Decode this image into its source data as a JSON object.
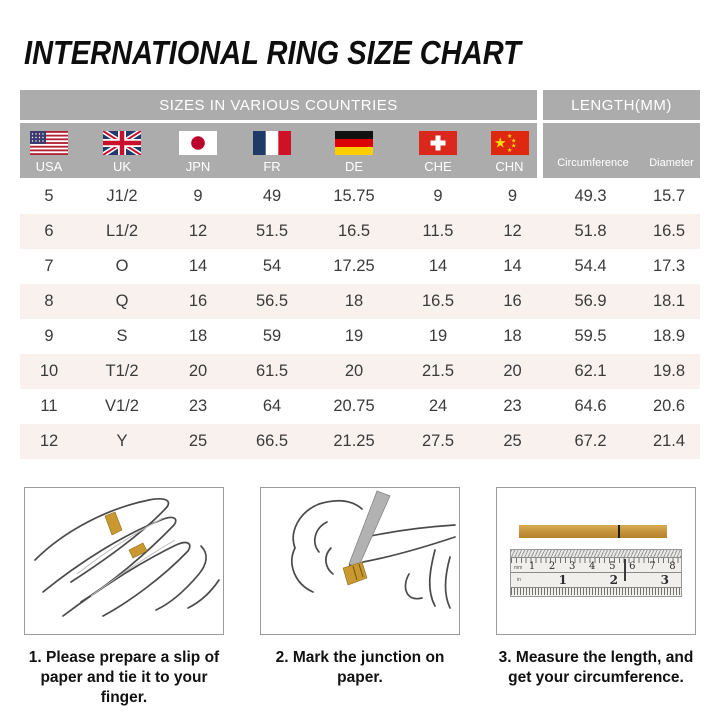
{
  "title": "INTERNATIONAL RING SIZE CHART",
  "chart_data": {
    "type": "table",
    "title": "INTERNATIONAL RING SIZE CHART",
    "group_headers": {
      "sizes": "SIZES IN VARIOUS COUNTRIES",
      "length": "LENGTH(MM)"
    },
    "columns": [
      "USA",
      "UK",
      "JPN",
      "FR",
      "DE",
      "CHE",
      "CHN",
      "Circumference",
      "Diameter"
    ],
    "flag_icons": [
      "usa-flag",
      "uk-flag",
      "japan-flag",
      "france-flag",
      "germany-flag",
      "switzerland-flag",
      "china-flag"
    ],
    "rows": [
      [
        "5",
        "J1/2",
        "9",
        "49",
        "15.75",
        "9",
        "9",
        "49.3",
        "15.7"
      ],
      [
        "6",
        "L1/2",
        "12",
        "51.5",
        "16.5",
        "11.5",
        "12",
        "51.8",
        "16.5"
      ],
      [
        "7",
        "O",
        "14",
        "54",
        "17.25",
        "14",
        "14",
        "54.4",
        "17.3"
      ],
      [
        "8",
        "Q",
        "16",
        "56.5",
        "18",
        "16.5",
        "16",
        "56.9",
        "18.1"
      ],
      [
        "9",
        "S",
        "18",
        "59",
        "19",
        "19",
        "18",
        "59.5",
        "18.9"
      ],
      [
        "10",
        "T1/2",
        "20",
        "61.5",
        "20",
        "21.5",
        "20",
        "62.1",
        "19.8"
      ],
      [
        "11",
        "V1/2",
        "23",
        "64",
        "20.75",
        "24",
        "23",
        "64.6",
        "20.6"
      ],
      [
        "12",
        "Y",
        "25",
        "66.5",
        "21.25",
        "27.5",
        "25",
        "67.2",
        "21.4"
      ]
    ]
  },
  "instructions": [
    {
      "caption": "1. Please prepare a slip of paper and tie it to your finger.",
      "illustration": "hand-with-paper-slip"
    },
    {
      "caption": "2. Mark the junction on paper.",
      "illustration": "mark-junction-with-pen"
    },
    {
      "caption": "3. Measure the length, and get your circumference.",
      "illustration": "strip-on-ruler"
    }
  ],
  "ruler": {
    "cm_numbers": [
      "1",
      "2",
      "3",
      "4",
      "5",
      "6",
      "7",
      "8"
    ],
    "inch_numbers": [
      "1",
      "2",
      "3"
    ],
    "unit_top": "mm",
    "unit_bottom": "in"
  },
  "colors": {
    "header_gray": "#acacac",
    "row_alt_pink": "#f8f1ee",
    "cell_text": "#3b3b3b",
    "paper_gold": "#c9992f",
    "title_black": "#0e0e0e"
  }
}
